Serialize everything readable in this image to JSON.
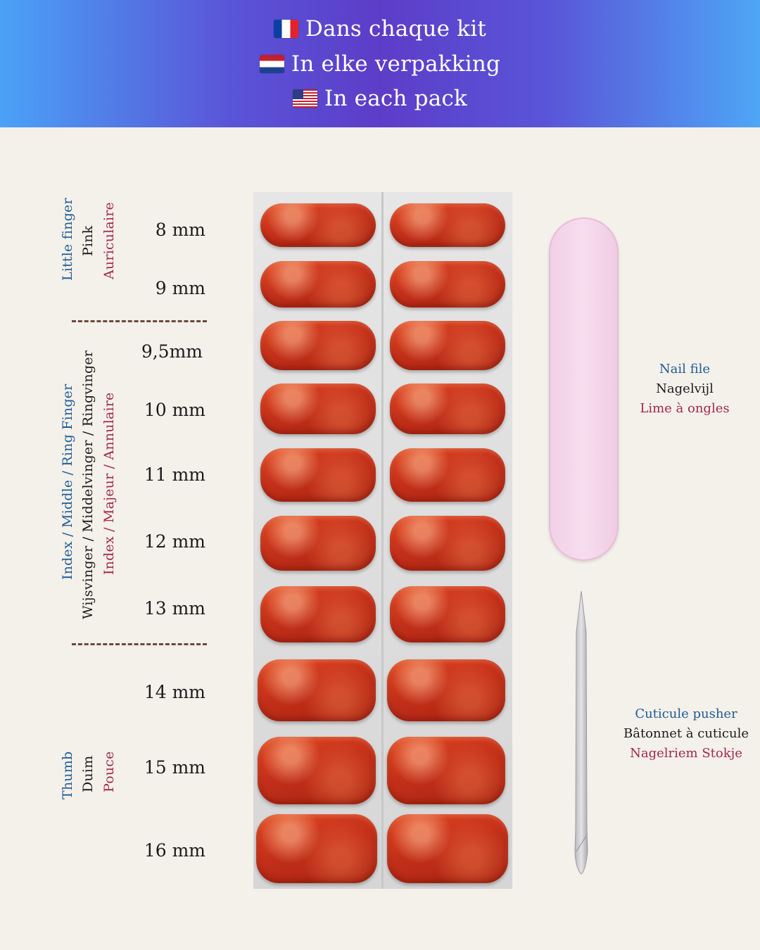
{
  "header": {
    "lines": [
      {
        "flag": "flag-france",
        "text": "Dans chaque kit"
      },
      {
        "flag": "flag-netherlands",
        "text": "In elke verpakking"
      },
      {
        "flag": "flag-usa",
        "text": "In each pack"
      }
    ]
  },
  "finger_groups": {
    "little": {
      "en": "Little finger",
      "nl": "Pink",
      "fr": "Auriculaire"
    },
    "middle": {
      "en": "Index / Middle / Ring Finger",
      "nl": "Wijsvinger / Middelvinger / Ringvinger",
      "fr": "Index / Majeur / Annulaire"
    },
    "thumb": {
      "en": "Thumb",
      "nl": "Duim",
      "fr": "Pouce"
    }
  },
  "sizes": [
    "8 mm",
    "9 mm",
    "9,5mm",
    "10 mm",
    "11 mm",
    "12 mm",
    "13 mm",
    "14 mm",
    "15 mm",
    "16 mm"
  ],
  "tools": {
    "nail_file": {
      "en": "Nail file",
      "nl": "Nagelvijl",
      "fr": "Lime à ongles"
    },
    "cuticle_pusher": {
      "en": "Cuticule pusher",
      "fr": "Bâtonnet à cuticule",
      "nl": "Nagelriem Stokje"
    }
  },
  "colors": {
    "label_blue": "#1f5c94",
    "label_red": "#a22a4a",
    "nail_red": "#c4301a",
    "file_pink": "#f2cfe6"
  }
}
